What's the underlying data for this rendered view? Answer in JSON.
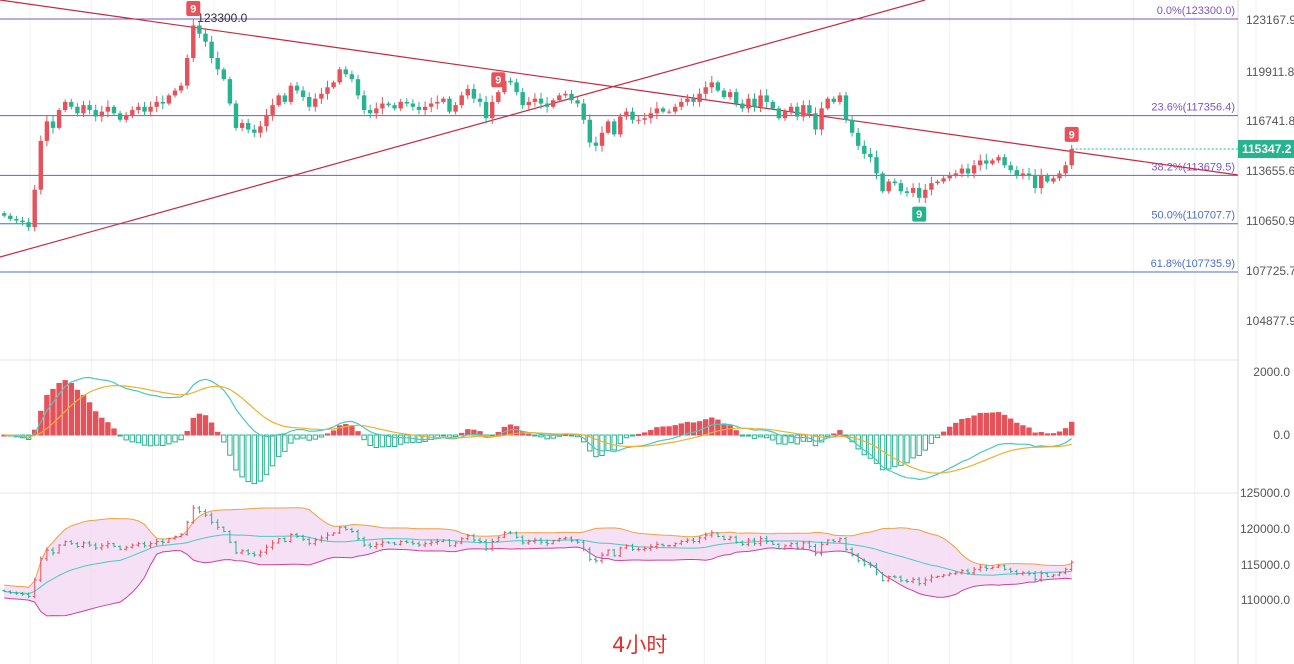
{
  "caption": "4小时",
  "colors": {
    "up": "#e5525a",
    "down": "#26b38f",
    "fib": "#7b55c7",
    "trendline": "#c8283f",
    "last_price_bg": "#26b38f",
    "dif": "#4cc8c0",
    "dea": "#f0b030",
    "boll_upper": "#f0a040",
    "boll_mid": "#4cc8c0",
    "boll_lower": "#d040a0",
    "boll_fill": "#f3d8f3",
    "caption": "#e03030"
  },
  "chart_data": [
    {
      "type": "candlestick",
      "panel": "main",
      "price_axis_ticks": [
        "123167.9",
        "119911.8",
        "116741.8",
        "113655.6",
        "110650.9",
        "107725.7",
        "104877.9"
      ],
      "last_price": "115347.2",
      "peak_label": "123300.0",
      "fib_levels": [
        {
          "ratio": "0.0%",
          "price": 123300.0,
          "label": "0.0%(123300.0)"
        },
        {
          "ratio": "23.6%",
          "price": 117356.4,
          "label": "23.6%(117356.4)"
        },
        {
          "ratio": "38.2%",
          "price": 113679.5,
          "label": "38.2%(113679.5)"
        },
        {
          "ratio": "50.0%",
          "price": 110707.7,
          "label": "50.0%(110707.7)"
        },
        {
          "ratio": "61.8%",
          "price": 107735.9,
          "label": "61.8%(107735.9)"
        }
      ],
      "td_markers": [
        {
          "label": "9",
          "kind": "sell",
          "near_close": 122900
        },
        {
          "label": "9",
          "kind": "sell",
          "near_close": 118800
        },
        {
          "label": "9",
          "kind": "sell",
          "near_close": 115200
        },
        {
          "label": "9",
          "kind": "buy",
          "near_close": 112400
        }
      ],
      "closes": [
        111200,
        111000,
        110900,
        110800,
        110500,
        112800,
        115800,
        117000,
        116600,
        117700,
        118200,
        117900,
        117500,
        118000,
        117700,
        117300,
        117600,
        117900,
        117500,
        117100,
        117400,
        117700,
        117900,
        117600,
        117900,
        118200,
        118100,
        118600,
        118900,
        119200,
        120900,
        122900,
        122400,
        121900,
        120900,
        120200,
        119600,
        118100,
        116600,
        116900,
        116500,
        116300,
        116700,
        117400,
        118000,
        118600,
        118200,
        119200,
        118900,
        118500,
        117900,
        118400,
        118700,
        119100,
        119400,
        120200,
        119900,
        119600,
        118600,
        117700,
        117500,
        117800,
        118100,
        118000,
        117800,
        118200,
        118100,
        117900,
        117700,
        117900,
        118100,
        118200,
        118400,
        117600,
        118000,
        118600,
        119000,
        118400,
        118200,
        117200,
        118200,
        118800,
        119500,
        119400,
        118800,
        118000,
        118200,
        118400,
        118100,
        117900,
        118300,
        118600,
        118700,
        118300,
        118100,
        117100,
        115700,
        115500,
        116300,
        117000,
        116200,
        117300,
        117600,
        117100,
        117100,
        117200,
        117500,
        117800,
        117600,
        117600,
        117900,
        118200,
        118400,
        118200,
        118700,
        119100,
        119400,
        118900,
        118500,
        118800,
        118100,
        117800,
        118400,
        117900,
        118600,
        118200,
        117800,
        117200,
        117600,
        117900,
        117300,
        118000,
        117500,
        116500,
        117800,
        118400,
        118200,
        118600,
        117100,
        116300,
        115500,
        115000,
        114800,
        113800,
        112700,
        113300,
        113200,
        112700,
        112600,
        112900,
        112300,
        112800,
        113200,
        113300,
        113500,
        113700,
        113800,
        114100,
        113800,
        114300,
        114600,
        114400,
        114600,
        114800,
        114300,
        114000,
        113700,
        113800,
        113700,
        112900,
        113700,
        113300,
        113500,
        113800,
        114300,
        115300
      ]
    },
    {
      "type": "macd",
      "panel": "oscillator",
      "axis_ticks": [
        "2000.0",
        "0.0"
      ],
      "series_colors": {
        "dif": "#4cc8c0",
        "dea": "#f0b030"
      }
    },
    {
      "type": "bollinger",
      "panel": "bands",
      "axis_ticks": [
        "125000.0",
        "120000.0",
        "115000.0",
        "110000.0"
      ],
      "period": 20,
      "std_multiplier": 2
    }
  ]
}
